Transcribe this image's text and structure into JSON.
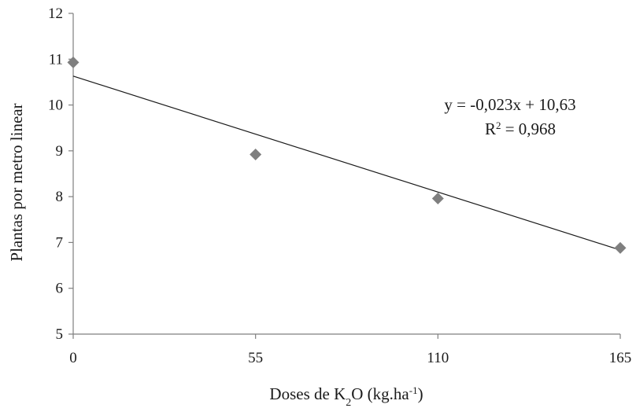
{
  "chart_data": {
    "type": "scatter",
    "xlabel": {
      "prefix": "Doses de K",
      "sub": "2",
      "middle": "O (kg.ha",
      "sup": "-1",
      "suffix": ")"
    },
    "ylabel": "Plantas por metro linear",
    "x_ticks": [
      "0",
      "55",
      "110",
      "165"
    ],
    "y_ticks": [
      "5",
      "6",
      "7",
      "8",
      "9",
      "10",
      "11",
      "12"
    ],
    "xlim": [
      0,
      165
    ],
    "ylim": [
      5,
      12
    ],
    "grid": false,
    "legend": "none",
    "points": [
      {
        "x": 0,
        "y": 10.93
      },
      {
        "x": 55,
        "y": 8.92
      },
      {
        "x": 110,
        "y": 7.96
      },
      {
        "x": 165,
        "y": 6.88
      }
    ],
    "trendline": {
      "slope": -0.023,
      "intercept": 10.63,
      "equation": "y = -0,023x + 10,63",
      "r2_prefix": "R",
      "r2_sup": "2",
      "r2_value": " = 0,968"
    },
    "colors": {
      "marker": "#7f7f7f",
      "line": "#1a1a1a",
      "axis": "#7f7f7f"
    }
  }
}
